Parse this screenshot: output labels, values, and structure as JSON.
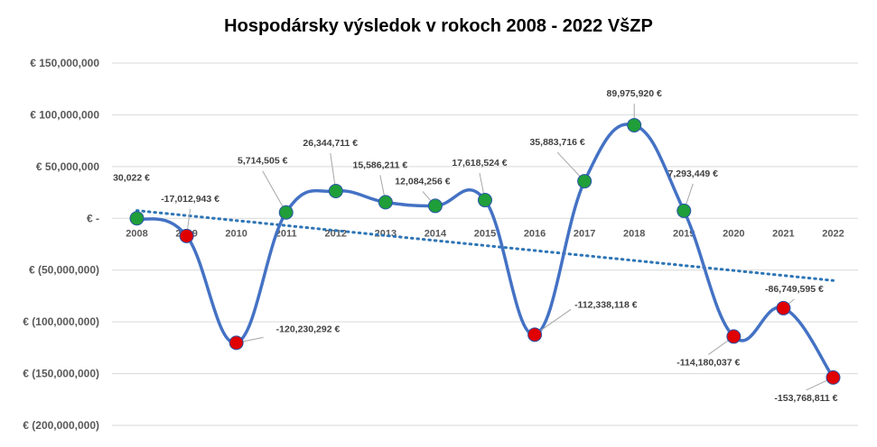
{
  "chart_data": {
    "type": "line",
    "title": "Hospodársky výsledok v rokoch 2008 - 2022 VšZP",
    "xlabel": "",
    "ylabel": "",
    "ylim": [
      -200000000,
      150000000
    ],
    "y_ticks": [
      150000000,
      100000000,
      50000000,
      0,
      -50000000,
      -100000000,
      -150000000,
      -200000000
    ],
    "y_tick_labels": [
      "€ 150,000,000",
      "€ 100,000,000",
      "€ 50,000,000",
      "€ -",
      "€ (50,000,000)",
      "€ (100,000,000)",
      "€ (150,000,000)",
      "€ (200,000,000)"
    ],
    "categories": [
      "2008",
      "2009",
      "2010",
      "2011",
      "2012",
      "2013",
      "2014",
      "2015",
      "2016",
      "2017",
      "2018",
      "2019",
      "2020",
      "2021",
      "2022"
    ],
    "series": [
      {
        "values": [
          30022,
          -17012943,
          -120230292,
          5714505,
          26344711,
          15586211,
          12084256,
          17618524,
          -112338118,
          35883716,
          89975920,
          7293449,
          -114180037,
          -86749595,
          -153768811
        ],
        "data_labels": [
          "30,022 €",
          "-17,012,943 €",
          "-120,230,292 €",
          "5,714,505 €",
          "26,344,711 €",
          "15,586,211 €",
          "12,084,256 €",
          "17,618,524 €",
          "-112,338,118 €",
          "35,883,716 €",
          "89,975,920 €",
          "7,293,449 €",
          "-114,180,037 €",
          "-86,749,595 €",
          "-153,768,811 €"
        ],
        "line_color": "#4472C4",
        "positive_marker_color": "#1F9E3A",
        "negative_marker_color": "#E00000"
      }
    ],
    "trendline": {
      "type": "linear",
      "style": "dotted",
      "color": "#2E75B6"
    },
    "grid": true,
    "legend": "none"
  }
}
